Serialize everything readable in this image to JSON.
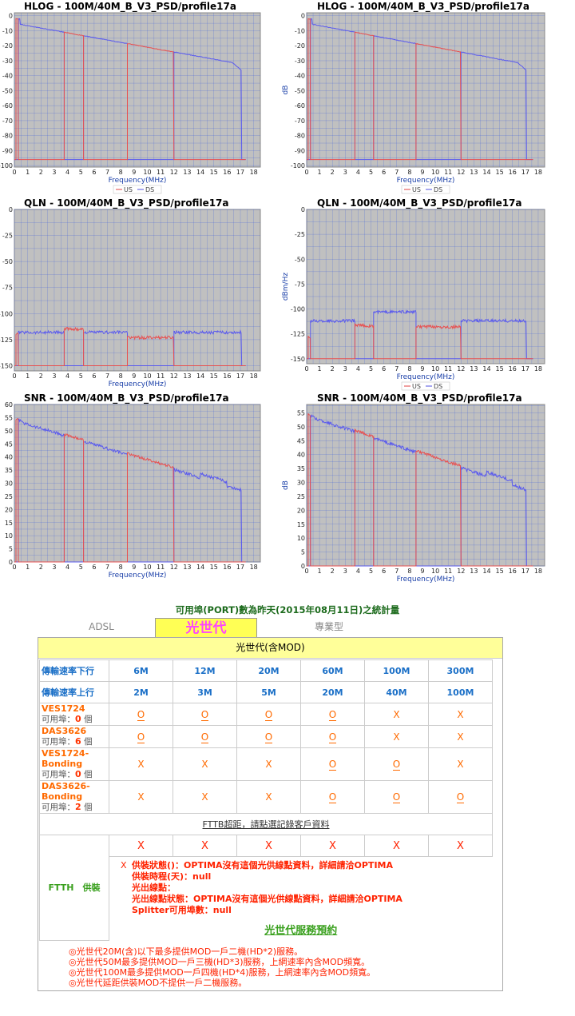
{
  "charts": {
    "hlog_left": {
      "title": "HLOG - 100M/40M_B_V3_PSD/profile17a",
      "ylabel": "",
      "xlabel": "Frequency(MHz)",
      "yticks": [
        "0",
        "-10",
        "-20",
        "-30",
        "-40",
        "-50",
        "-60",
        "-70",
        "-80",
        "-90",
        "-100"
      ],
      "xticks": [
        "0",
        "1",
        "2",
        "3",
        "4",
        "5",
        "6",
        "7",
        "8",
        "9",
        "10",
        "11",
        "12",
        "13",
        "14",
        "15",
        "16",
        "17",
        "18"
      ],
      "legend": [
        "US",
        "DS"
      ]
    },
    "hlog_right": {
      "title": "HLOG - 100M/40M_B_V3_PSD/profile17a",
      "ylabel": "dB",
      "xlabel": "Frequency(MHz)",
      "yticks": [
        "0",
        "-10",
        "-20",
        "-30",
        "-40",
        "-50",
        "-60",
        "-70",
        "-80",
        "-90",
        "-100"
      ],
      "xticks": [
        "0",
        "1",
        "2",
        "3",
        "4",
        "5",
        "6",
        "7",
        "8",
        "9",
        "10",
        "11",
        "12",
        "13",
        "14",
        "15",
        "16",
        "17",
        "18"
      ],
      "legend": [
        "US",
        "DS"
      ]
    },
    "qln_left": {
      "title": "QLN - 100M/40M_B_V3_PSD/profile17a",
      "ylabel": "",
      "xlabel": "Frequency(MHz)",
      "yticks": [
        "0",
        "-25",
        "-50",
        "-75",
        "-100",
        "-125",
        "-150"
      ],
      "xticks": [
        "0",
        "1",
        "2",
        "3",
        "4",
        "5",
        "6",
        "7",
        "8",
        "9",
        "10",
        "11",
        "12",
        "13",
        "14",
        "15",
        "16",
        "17",
        "18"
      ],
      "legend": []
    },
    "qln_right": {
      "title": "QLN - 100M/40M_B_V3_PSD/profile17a",
      "ylabel": "dBm/Hz",
      "xlabel": "Frequency(MHz)",
      "yticks": [
        "0",
        "-25",
        "-50",
        "-75",
        "-100",
        "-125",
        "-150"
      ],
      "xticks": [
        "0",
        "1",
        "2",
        "3",
        "4",
        "5",
        "6",
        "7",
        "8",
        "9",
        "10",
        "11",
        "12",
        "13",
        "14",
        "15",
        "16",
        "17",
        "18"
      ],
      "legend": [
        "US",
        "DS"
      ]
    },
    "snr_left": {
      "title": "SNR - 100M/40M_B_V3_PSD/profile17a",
      "ylabel": "",
      "xlabel": "Frequency(MHz)",
      "yticks": [
        "60",
        "55",
        "50",
        "45",
        "40",
        "35",
        "30",
        "25",
        "20",
        "15",
        "10",
        "5",
        "0"
      ],
      "xticks": [
        "0",
        "1",
        "2",
        "3",
        "4",
        "5",
        "6",
        "7",
        "8",
        "9",
        "10",
        "11",
        "12",
        "13",
        "14",
        "15",
        "16",
        "17",
        "18"
      ],
      "legend": []
    },
    "snr_right": {
      "title": "SNR - 100M/40M_B_V3_PSD/profile17a",
      "ylabel": "dB",
      "xlabel": "Frequency(MHz)",
      "yticks": [
        "55",
        "50",
        "45",
        "40",
        "35",
        "30",
        "25",
        "20",
        "15",
        "10",
        "5",
        "0"
      ],
      "xticks": [
        "0",
        "1",
        "2",
        "3",
        "4",
        "5",
        "6",
        "7",
        "8",
        "9",
        "10",
        "11",
        "12",
        "13",
        "14",
        "15",
        "16",
        "17",
        "18"
      ],
      "legend": []
    }
  },
  "stats_title": "可用埠(PORT)數為昨天(2015年08月11日)之統計量",
  "tabs": [
    "ADSL",
    "光世代",
    "專業型"
  ],
  "band_title": "光世代(含MOD)",
  "rows": {
    "down_label": "傳輸速率下行",
    "down": [
      "6M",
      "12M",
      "20M",
      "60M",
      "100M",
      "300M"
    ],
    "up_label": "傳輸速率上行",
    "up": [
      "2M",
      "3M",
      "5M",
      "20M",
      "40M",
      "100M"
    ]
  },
  "devices": [
    {
      "name": "VES1724",
      "avail_label": "可用埠：",
      "count": "0",
      "unit": "個",
      "marks": [
        "O",
        "O",
        "O",
        "O",
        "X",
        "X"
      ]
    },
    {
      "name": "DAS3626",
      "avail_label": "可用埠：",
      "count": "6",
      "unit": "個",
      "marks": [
        "O",
        "O",
        "O",
        "O",
        "X",
        "X"
      ]
    },
    {
      "name": "VES1724-Bonding",
      "avail_label": "可用埠：",
      "count": "0",
      "unit": "個",
      "marks": [
        "X",
        "X",
        "X",
        "O",
        "O",
        "X"
      ]
    },
    {
      "name": "DAS3626-Bonding",
      "avail_label": "可用埠：",
      "count": "2",
      "unit": "個",
      "marks": [
        "X",
        "X",
        "X",
        "O",
        "O",
        "O"
      ]
    }
  ],
  "fttb_text": "FTTB超距，請點選記錄客戶資料",
  "ftth": {
    "label": "FTTH　供裝",
    "marks": [
      "X",
      "X",
      "X",
      "X",
      "X",
      "X"
    ],
    "info_mark": "X",
    "lines": [
      "供裝狀態()：OPTIMA沒有這個光供線點資料，詳細請洽OPTIMA",
      "供裝時程(天)：null",
      "光出線點：",
      "光出線點狀態：OPTIMA沒有這個光供線點資料，詳細請洽OPTIMA",
      "Splitter可用埠數：null"
    ],
    "reserve": "光世代服務預約"
  },
  "notes": [
    "◎光世代20M(含)以下最多提供MOD一戶二機(HD*2)服務。",
    "◎光世代50M最多提供MOD一戶三機(HD*3)服務，上網速率內含MOD頻寬。",
    "◎光世代100M最多提供MOD一戶四機(HD*4)服務，上網速率內含MOD頻寬。",
    "◎光世代延距供裝MOD不提供一戶二機服務。"
  ]
}
